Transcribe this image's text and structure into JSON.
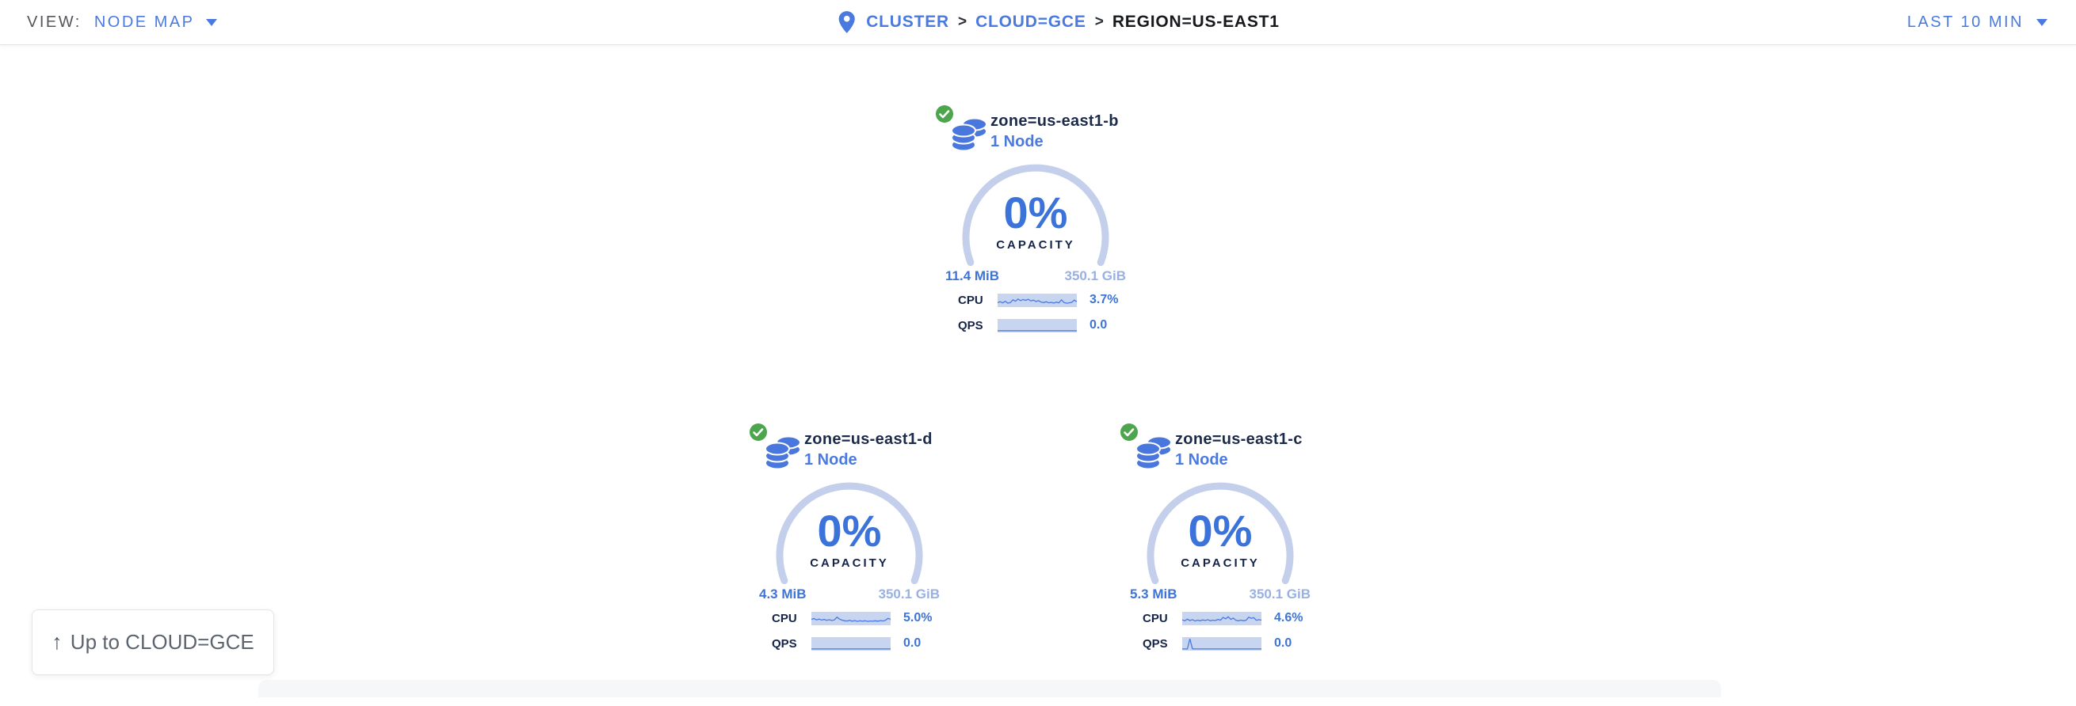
{
  "view_bar": {
    "view_label": "VIEW:",
    "view_value": "NODE MAP",
    "time_range": "LAST 10 MIN"
  },
  "breadcrumb": {
    "separator": ">",
    "items": [
      {
        "label": "CLUSTER"
      },
      {
        "label": "CLOUD=GCE"
      },
      {
        "label": "REGION=US-EAST1"
      }
    ]
  },
  "zones": [
    {
      "name": "zone=us-east1-b",
      "node_count": "1 Node",
      "capacity_pct": "0%",
      "capacity_label": "CAPACITY",
      "used": "11.4 MiB",
      "total": "350.1 GiB",
      "cpu_label": "CPU",
      "cpu_value": "3.7%",
      "qps_label": "QPS",
      "qps_value": "0.0",
      "cpu_series": [
        0.3,
        0.38,
        0.28,
        0.42,
        0.25,
        0.3,
        0.55,
        0.42,
        0.62,
        0.48,
        0.58,
        0.5,
        0.6,
        0.45,
        0.52,
        0.4,
        0.48,
        0.35,
        0.3,
        0.38,
        0.28,
        0.32,
        0.26,
        0.34,
        0.28,
        0.55,
        0.3,
        0.24,
        0.28,
        0.32,
        0.52,
        0.38
      ],
      "qps_series": [
        0.04,
        0.04,
        0.04,
        0.04,
        0.04,
        0.04,
        0.04,
        0.04,
        0.04,
        0.04,
        0.04,
        0.04,
        0.04,
        0.04,
        0.04,
        0.04,
        0.04,
        0.04,
        0.04,
        0.04,
        0.04,
        0.04,
        0.04,
        0.04,
        0.04,
        0.04,
        0.04,
        0.04,
        0.04,
        0.04,
        0.04,
        0.04
      ]
    },
    {
      "name": "zone=us-east1-d",
      "node_count": "1 Node",
      "capacity_pct": "0%",
      "capacity_label": "CAPACITY",
      "used": "4.3 MiB",
      "total": "350.1 GiB",
      "cpu_label": "CPU",
      "cpu_value": "5.0%",
      "qps_label": "QPS",
      "qps_value": "0.0",
      "cpu_series": [
        0.42,
        0.5,
        0.38,
        0.45,
        0.36,
        0.42,
        0.34,
        0.4,
        0.32,
        0.38,
        0.62,
        0.45,
        0.36,
        0.3,
        0.28,
        0.34,
        0.26,
        0.32,
        0.24,
        0.3,
        0.26,
        0.3,
        0.24,
        0.28,
        0.26,
        0.3,
        0.26,
        0.32,
        0.28,
        0.34,
        0.52,
        0.42
      ],
      "qps_series": [
        0.04,
        0.04,
        0.04,
        0.04,
        0.04,
        0.04,
        0.04,
        0.04,
        0.04,
        0.04,
        0.04,
        0.04,
        0.04,
        0.04,
        0.04,
        0.04,
        0.04,
        0.04,
        0.04,
        0.04,
        0.04,
        0.04,
        0.04,
        0.04,
        0.04,
        0.04,
        0.04,
        0.04,
        0.04,
        0.04,
        0.04,
        0.04
      ]
    },
    {
      "name": "zone=us-east1-c",
      "node_count": "1 Node",
      "capacity_pct": "0%",
      "capacity_label": "CAPACITY",
      "used": "5.3 MiB",
      "total": "350.1 GiB",
      "cpu_label": "CPU",
      "cpu_value": "4.6%",
      "qps_label": "QPS",
      "qps_value": "0.0",
      "cpu_series": [
        0.38,
        0.3,
        0.44,
        0.32,
        0.4,
        0.28,
        0.36,
        0.3,
        0.38,
        0.32,
        0.4,
        0.3,
        0.36,
        0.32,
        0.42,
        0.36,
        0.6,
        0.48,
        0.66,
        0.42,
        0.54,
        0.34,
        0.3,
        0.36,
        0.3,
        0.34,
        0.62,
        0.52,
        0.58,
        0.34,
        0.4,
        0.36
      ],
      "qps_series": [
        0.04,
        0.04,
        0.04,
        0.95,
        0.06,
        0.04,
        0.04,
        0.04,
        0.04,
        0.04,
        0.04,
        0.04,
        0.04,
        0.04,
        0.04,
        0.04,
        0.04,
        0.04,
        0.04,
        0.04,
        0.04,
        0.04,
        0.04,
        0.04,
        0.04,
        0.04,
        0.04,
        0.04,
        0.04,
        0.04,
        0.04,
        0.04
      ]
    }
  ],
  "up_button": {
    "arrow": "↑",
    "label": "Up to CLOUD=GCE"
  },
  "colors": {
    "accent_blue": "#4a7ae0",
    "value_blue": "#3e74d6",
    "light_blue": "#98b1e2",
    "arc_blue": "#c3cfeb",
    "spark_fill": "#c7d5f0",
    "navy": "#152447",
    "ok_green": "#4da64d"
  }
}
